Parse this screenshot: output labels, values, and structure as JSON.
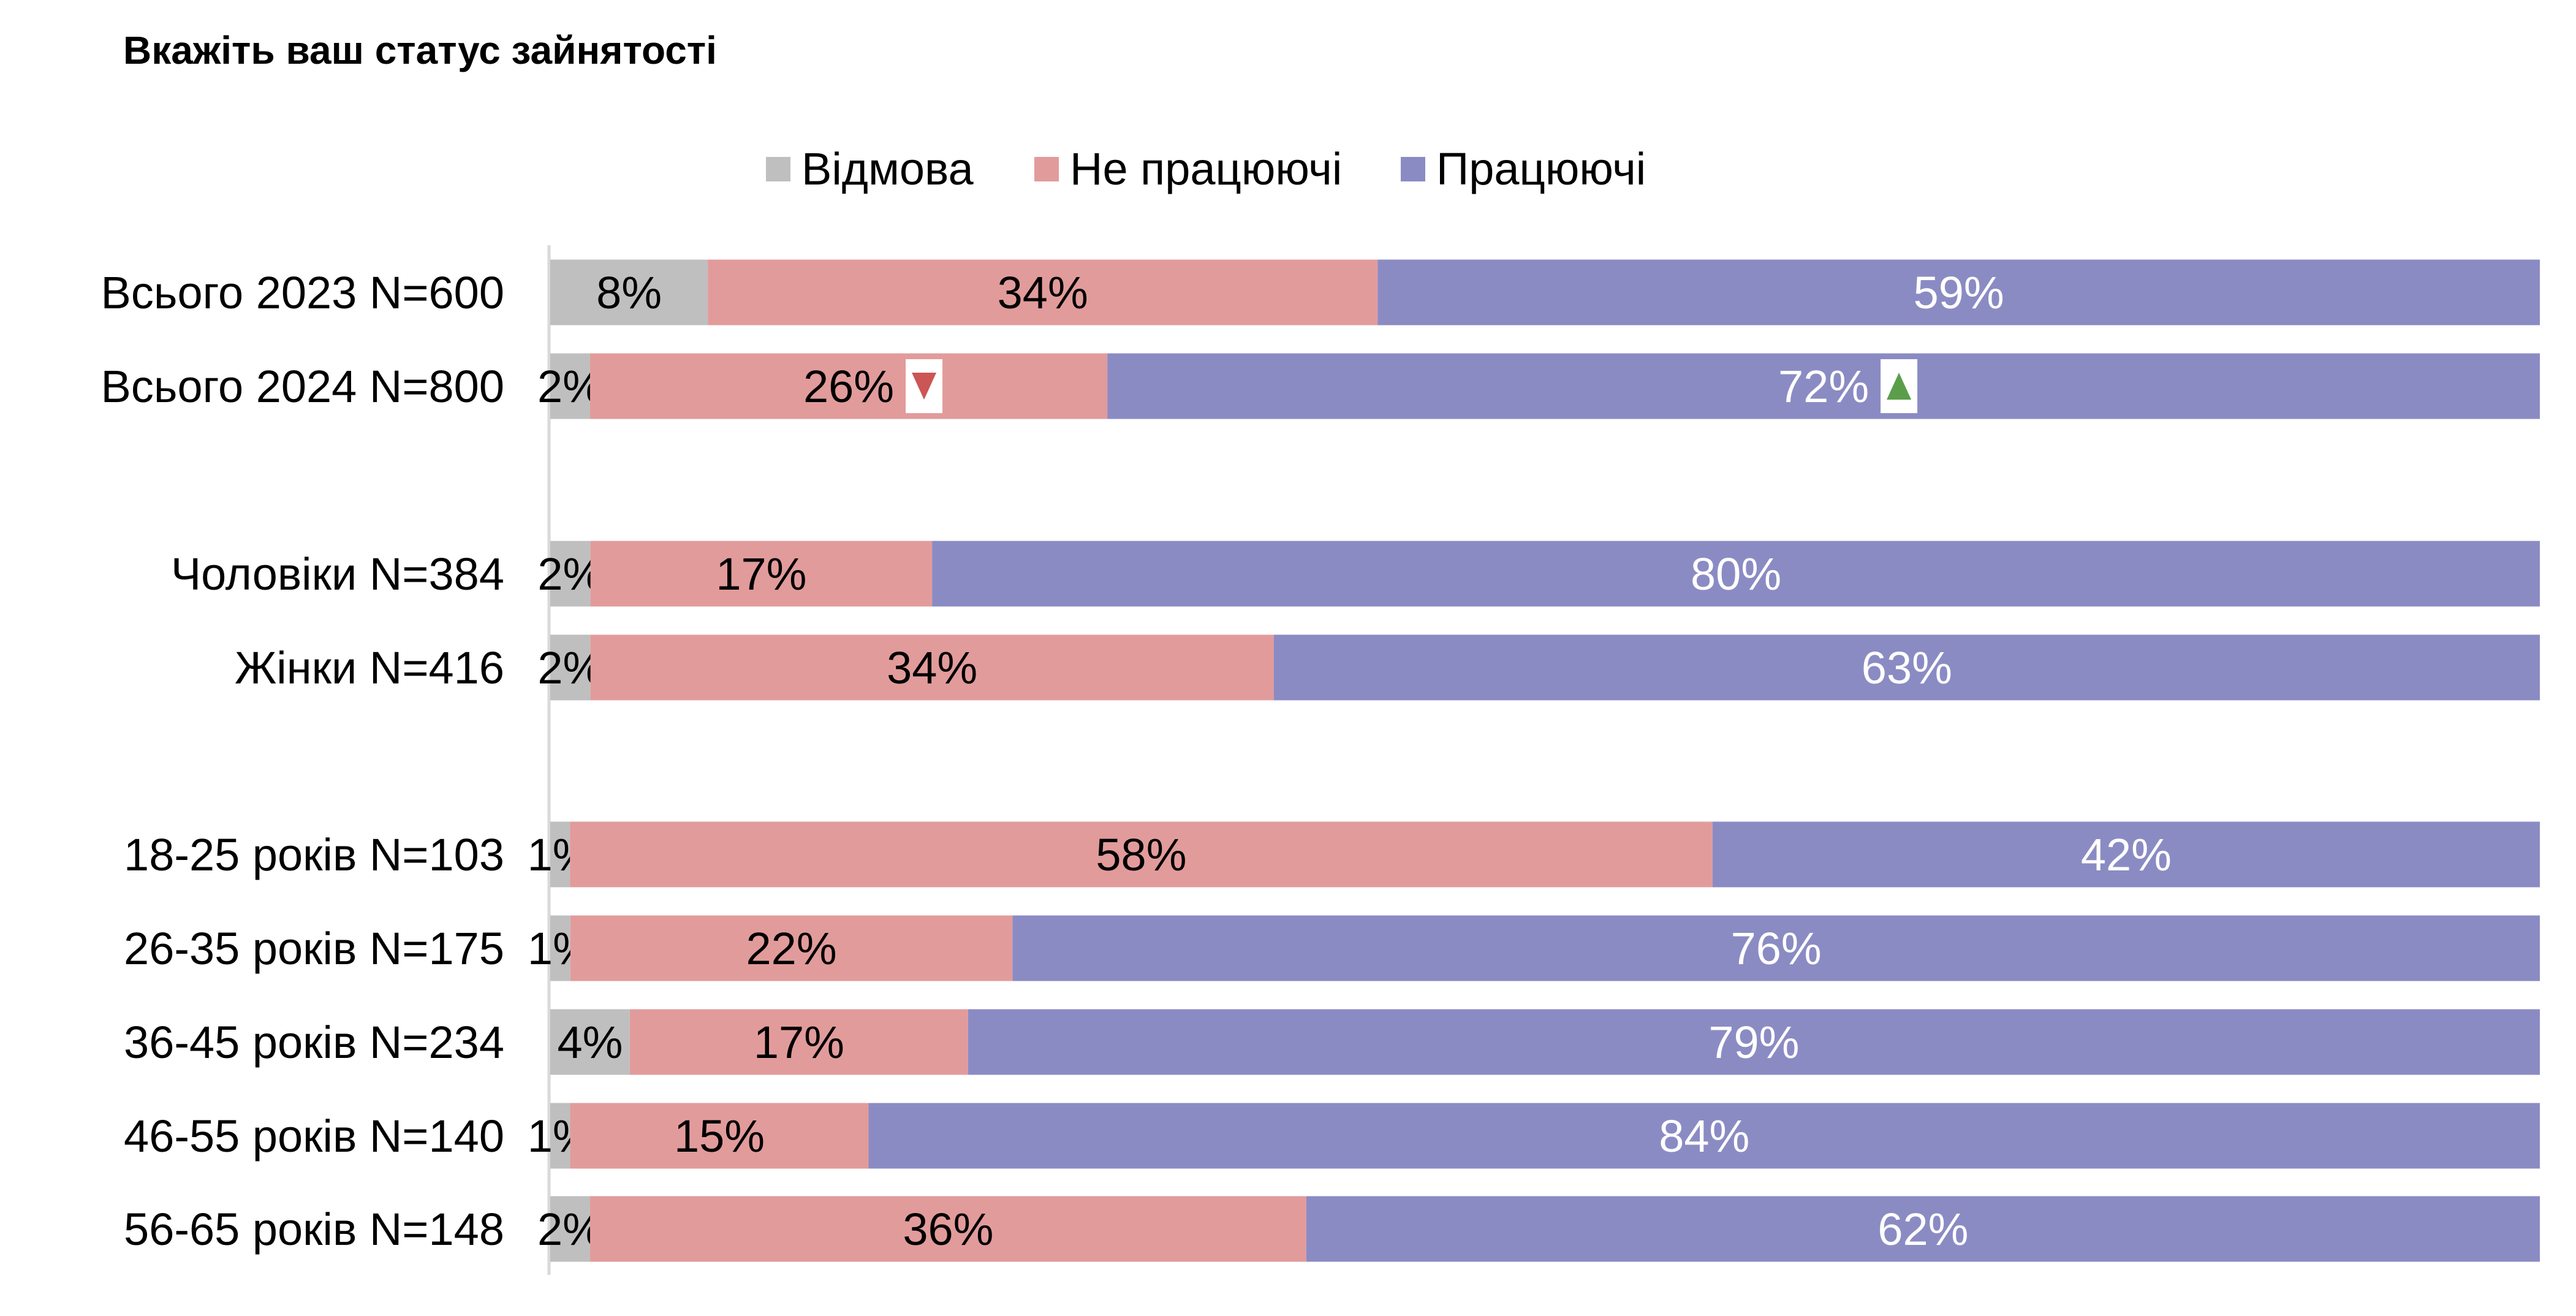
{
  "chart_data": {
    "type": "bar",
    "stacked": true,
    "orientation": "horizontal",
    "normalized": true,
    "title": "Вкажіть ваш статус зайнятості",
    "legend_position": "top",
    "categories": [
      "Всього 2023 N=600",
      "Всього 2024 N=800",
      "Чоловіки N=384",
      "Жінки N=416",
      "18-25 років N=103",
      "26-35 років N=175",
      "36-45 років N=234",
      "46-55 років N=140",
      "56-65 років N=148"
    ],
    "group_breaks_after": [
      1,
      3
    ],
    "series": [
      {
        "name": "Відмова",
        "color": "#bfbfbf",
        "label_color": "#000000",
        "values": [
          8,
          2,
          2,
          2,
          1,
          1,
          4,
          1,
          2
        ],
        "markers": [
          null,
          "down",
          null,
          null,
          null,
          null,
          null,
          null,
          null
        ]
      },
      {
        "name": "Не працюючі",
        "color": "#e29b9b",
        "label_color": "#000000",
        "values": [
          34,
          26,
          17,
          34,
          58,
          22,
          17,
          15,
          36
        ],
        "markers": [
          null,
          "down",
          null,
          null,
          null,
          null,
          null,
          null,
          null
        ]
      },
      {
        "name": "Працюючі",
        "color": "#8b8bc4",
        "label_color": "#ffffff",
        "values": [
          59,
          72,
          80,
          63,
          42,
          76,
          79,
          84,
          62
        ],
        "markers": [
          null,
          "up",
          null,
          null,
          null,
          null,
          null,
          null,
          null
        ]
      }
    ],
    "marker_colors": {
      "down": "#cc5555",
      "up": "#5a9e4a"
    },
    "grid": false
  }
}
